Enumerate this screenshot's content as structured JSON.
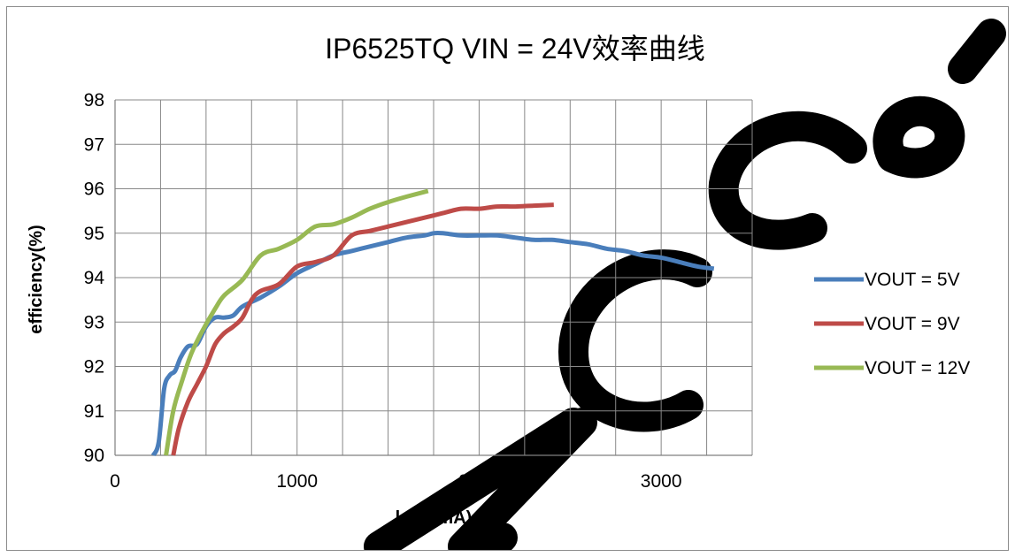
{
  "chart_data": {
    "type": "line",
    "title": "IP6525TQ VIN = 24V效率曲线",
    "xlabel": "load(mA)",
    "ylabel": "efficiency(%)",
    "xlim": [
      0,
      3500
    ],
    "ylim": [
      90,
      98
    ],
    "x_ticks": [
      0,
      1000,
      2000,
      3000
    ],
    "x_gridline_step": 250,
    "y_ticks": [
      90,
      91,
      92,
      93,
      94,
      95,
      96,
      97,
      98
    ],
    "grid": true,
    "legend_position": "right",
    "series": [
      {
        "name": "VOUT = 5V",
        "color": "#4a7ebb",
        "points": [
          [
            210,
            90.0
          ],
          [
            240,
            90.3
          ],
          [
            270,
            91.5
          ],
          [
            300,
            91.8
          ],
          [
            330,
            91.9
          ],
          [
            360,
            92.2
          ],
          [
            400,
            92.45
          ],
          [
            450,
            92.5
          ],
          [
            500,
            92.9
          ],
          [
            550,
            93.1
          ],
          [
            600,
            93.1
          ],
          [
            650,
            93.15
          ],
          [
            700,
            93.35
          ],
          [
            800,
            93.55
          ],
          [
            900,
            93.8
          ],
          [
            1000,
            94.1
          ],
          [
            1100,
            94.3
          ],
          [
            1200,
            94.5
          ],
          [
            1300,
            94.6
          ],
          [
            1400,
            94.7
          ],
          [
            1500,
            94.8
          ],
          [
            1600,
            94.9
          ],
          [
            1700,
            94.95
          ],
          [
            1750,
            95.0
          ],
          [
            1800,
            95.0
          ],
          [
            1900,
            94.95
          ],
          [
            2000,
            94.95
          ],
          [
            2100,
            94.95
          ],
          [
            2200,
            94.9
          ],
          [
            2300,
            94.85
          ],
          [
            2400,
            94.85
          ],
          [
            2500,
            94.8
          ],
          [
            2600,
            94.75
          ],
          [
            2700,
            94.65
          ],
          [
            2800,
            94.6
          ],
          [
            2900,
            94.5
          ],
          [
            3000,
            94.45
          ],
          [
            3100,
            94.35
          ],
          [
            3200,
            94.25
          ],
          [
            3290,
            94.2
          ]
        ]
      },
      {
        "name": "VOUT = 9V",
        "color": "#be4b48",
        "points": [
          [
            320,
            90.0
          ],
          [
            350,
            90.6
          ],
          [
            400,
            91.2
          ],
          [
            450,
            91.6
          ],
          [
            500,
            92.0
          ],
          [
            550,
            92.5
          ],
          [
            600,
            92.75
          ],
          [
            650,
            92.9
          ],
          [
            700,
            93.1
          ],
          [
            750,
            93.5
          ],
          [
            800,
            93.7
          ],
          [
            900,
            93.85
          ],
          [
            1000,
            94.25
          ],
          [
            1100,
            94.35
          ],
          [
            1200,
            94.5
          ],
          [
            1300,
            94.95
          ],
          [
            1400,
            95.05
          ],
          [
            1500,
            95.15
          ],
          [
            1600,
            95.25
          ],
          [
            1700,
            95.35
          ],
          [
            1800,
            95.45
          ],
          [
            1900,
            95.55
          ],
          [
            2000,
            95.55
          ],
          [
            2100,
            95.6
          ],
          [
            2200,
            95.6
          ],
          [
            2300,
            95.62
          ],
          [
            2410,
            95.64
          ]
        ]
      },
      {
        "name": "VOUT = 12V",
        "color": "#98b954",
        "points": [
          [
            280,
            90.0
          ],
          [
            320,
            91.0
          ],
          [
            370,
            91.7
          ],
          [
            420,
            92.3
          ],
          [
            480,
            92.8
          ],
          [
            550,
            93.3
          ],
          [
            600,
            93.6
          ],
          [
            700,
            93.95
          ],
          [
            800,
            94.5
          ],
          [
            900,
            94.65
          ],
          [
            1000,
            94.85
          ],
          [
            1100,
            95.15
          ],
          [
            1200,
            95.2
          ],
          [
            1300,
            95.35
          ],
          [
            1400,
            95.55
          ],
          [
            1500,
            95.7
          ],
          [
            1600,
            95.82
          ],
          [
            1720,
            95.95
          ]
        ]
      }
    ]
  }
}
